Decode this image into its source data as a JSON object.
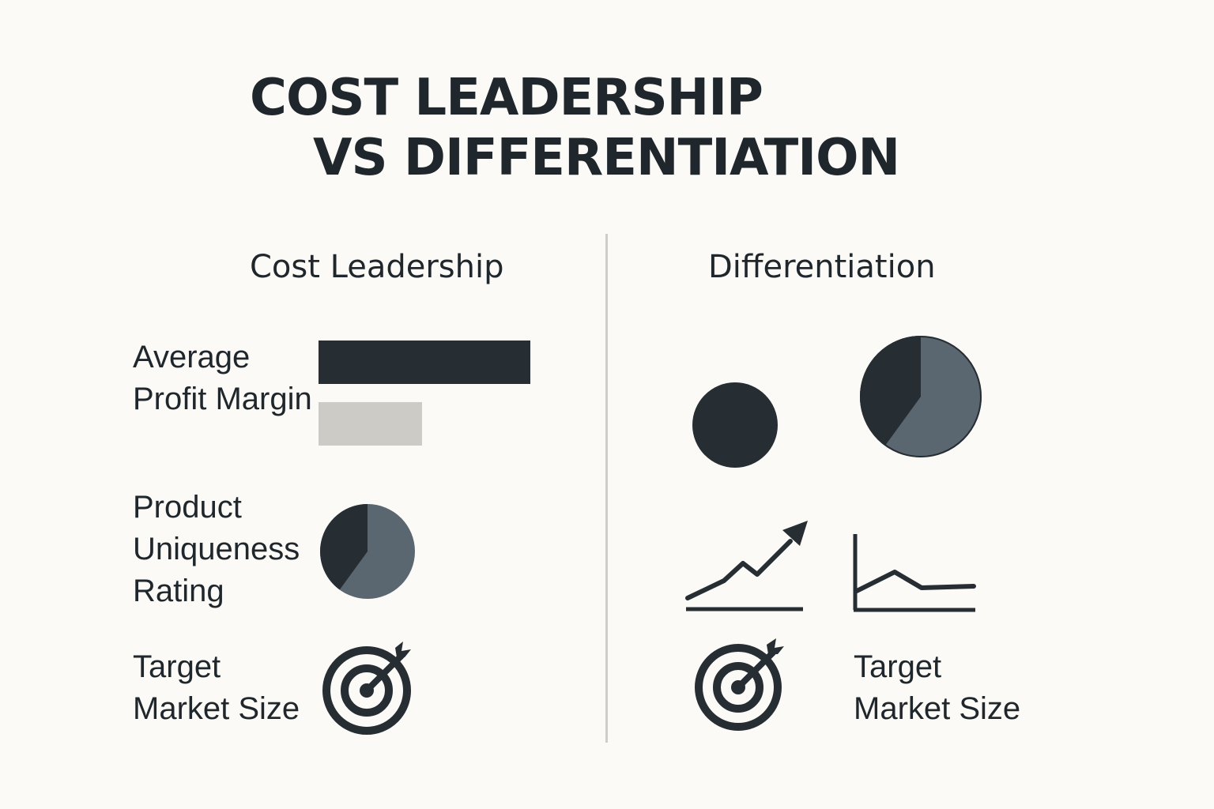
{
  "title": {
    "line1": "COST LEADERSHIP",
    "line2": "VS DIFFERENTIATION"
  },
  "columns": {
    "left": {
      "heading": "Cost Leadership"
    },
    "right": {
      "heading": "Differentiation"
    }
  },
  "left_rows": {
    "profit_margin": {
      "label_lines": [
        "Average",
        "Profit Margin"
      ],
      "bars": [
        {
          "value": 1.0,
          "color": "#262d33"
        },
        {
          "value": 0.49,
          "color": "#cdcbc6"
        }
      ]
    },
    "uniqueness": {
      "label_lines": [
        "Product",
        "Uniqueness",
        "Rating"
      ],
      "pie_dark_fraction": 0.4,
      "icon": "pie-chart-icon"
    },
    "market": {
      "label_lines": [
        "Target",
        "Market Size"
      ],
      "icon": "target-icon"
    }
  },
  "right_rows": {
    "market": {
      "label_lines": [
        "Target",
        "Market Size"
      ],
      "icon": "target-icon"
    },
    "icons": [
      "circle-icon",
      "pie-chart-icon",
      "trend-up-icon",
      "line-chart-icon",
      "target-icon"
    ],
    "pie_dark_fraction": 0.4
  },
  "colors": {
    "dark": "#262d33",
    "slate": "#5a6770",
    "light": "#cdcbc6",
    "background": "#fbfaf6"
  }
}
